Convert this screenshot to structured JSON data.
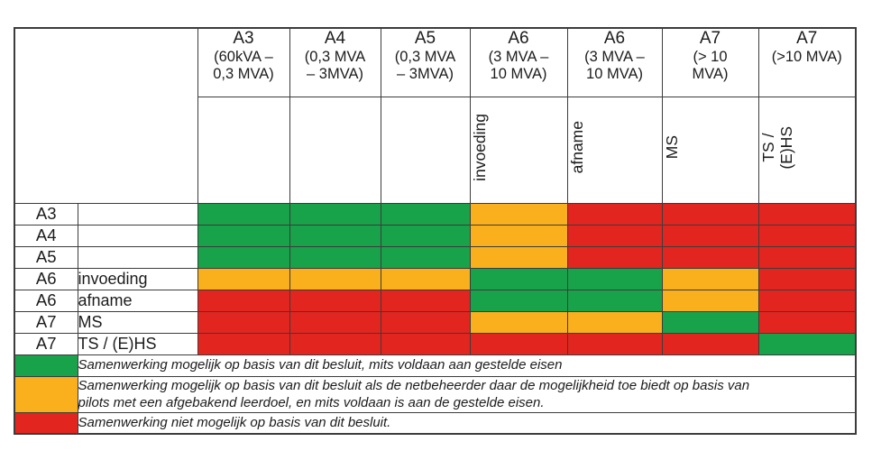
{
  "colors": {
    "green": "#18a24a",
    "orange": "#f9b01c",
    "red": "#e3251f"
  },
  "header": {
    "columns": [
      {
        "code": "A3",
        "range": "(60kVA –\n0,3 MVA)",
        "vertical_label": ""
      },
      {
        "code": "A4",
        "range": "(0,3 MVA\n– 3MVA)",
        "vertical_label": ""
      },
      {
        "code": "A5",
        "range": "(0,3 MVA\n– 3MVA)",
        "vertical_label": ""
      },
      {
        "code": "A6",
        "range": "(3 MVA –\n10 MVA)",
        "vertical_label": "invoeding"
      },
      {
        "code": "A6",
        "range": "(3 MVA –\n10 MVA)",
        "vertical_label": "afname"
      },
      {
        "code": "A7",
        "range": "(> 10\nMVA)",
        "vertical_label": "MS"
      },
      {
        "code": "A7",
        "range": "(>10 MVA)",
        "vertical_label": "TS /\n(E)HS"
      }
    ]
  },
  "matrix": {
    "rows": [
      {
        "code": "A3",
        "sublabel": "",
        "cells": [
          "green",
          "green",
          "green",
          "orange",
          "red",
          "red",
          "red"
        ]
      },
      {
        "code": "A4",
        "sublabel": "",
        "cells": [
          "green",
          "green",
          "green",
          "orange",
          "red",
          "red",
          "red"
        ]
      },
      {
        "code": "A5",
        "sublabel": "",
        "cells": [
          "green",
          "green",
          "green",
          "orange",
          "red",
          "red",
          "red"
        ]
      },
      {
        "code": "A6",
        "sublabel": "invoeding",
        "cells": [
          "orange",
          "orange",
          "orange",
          "green",
          "green",
          "orange",
          "red"
        ]
      },
      {
        "code": "A6",
        "sublabel": "afname",
        "cells": [
          "red",
          "red",
          "red",
          "green",
          "green",
          "orange",
          "red"
        ]
      },
      {
        "code": "A7",
        "sublabel": "MS",
        "cells": [
          "red",
          "red",
          "red",
          "orange",
          "orange",
          "green",
          "red"
        ]
      },
      {
        "code": "A7",
        "sublabel": "TS / (E)HS",
        "cells": [
          "red",
          "red",
          "red",
          "red",
          "red",
          "red",
          "green"
        ]
      }
    ]
  },
  "legend": {
    "items": [
      {
        "color": "green",
        "text": "Samenwerking mogelijk op basis van dit besluit, mits voldaan aan gestelde eisen"
      },
      {
        "color": "orange",
        "text": "Samenwerking mogelijk op basis van dit besluit als de netbeheerder daar de mogelijkheid toe biedt op basis van\npilots met een afgebakend leerdoel, en mits voldaan is aan de gestelde eisen."
      },
      {
        "color": "red",
        "text": "Samenwerking niet mogelijk op basis van dit besluit."
      }
    ]
  }
}
